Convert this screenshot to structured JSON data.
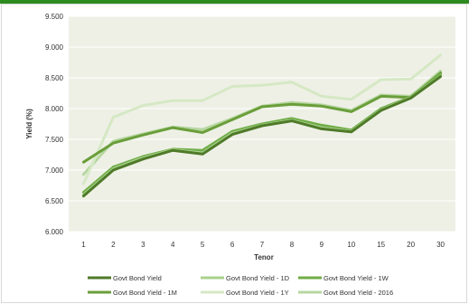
{
  "chart_data": {
    "type": "line",
    "title": "",
    "xlabel": "Tenor",
    "ylabel": "Yield (%)",
    "ylim": [
      6.0,
      9.5
    ],
    "yticks": [
      "6.000",
      "6.500",
      "7.000",
      "7.500",
      "8.000",
      "8.500",
      "9.000",
      "9.500"
    ],
    "categories": [
      "1",
      "2",
      "3",
      "4",
      "5",
      "6",
      "7",
      "8",
      "9",
      "10",
      "15",
      "20",
      "30"
    ],
    "grid": "horizontal",
    "legend_position": "bottom",
    "series": [
      {
        "name": "Govt Bond Yield",
        "color": "#4f7a28",
        "values": [
          6.58,
          7.0,
          7.18,
          7.32,
          7.26,
          7.58,
          7.72,
          7.8,
          7.67,
          7.62,
          7.97,
          8.17,
          8.52
        ]
      },
      {
        "name": "Govt Bond Yield - 1D",
        "color": "#a9d18e",
        "values": [
          6.6,
          7.02,
          7.2,
          7.33,
          7.28,
          7.6,
          7.73,
          7.81,
          7.69,
          7.63,
          7.98,
          8.18,
          8.53
        ]
      },
      {
        "name": "Govt Bond Yield - 1W",
        "color": "#70ad47",
        "values": [
          6.64,
          7.05,
          7.22,
          7.34,
          7.32,
          7.63,
          7.75,
          7.84,
          7.73,
          7.65,
          8.0,
          8.19,
          8.56
        ]
      },
      {
        "name": "Govt Bond Yield - 1M",
        "color": "#6a9e3a",
        "values": [
          7.13,
          7.44,
          7.57,
          7.69,
          7.61,
          7.82,
          8.03,
          8.07,
          8.04,
          7.95,
          8.2,
          8.18,
          8.58
        ]
      },
      {
        "name": "Govt Bond Yield - 1Y",
        "color": "#d5e8c4",
        "values": [
          6.78,
          7.86,
          8.05,
          8.13,
          8.13,
          8.36,
          8.38,
          8.43,
          8.2,
          8.15,
          8.47,
          8.48,
          8.87
        ]
      },
      {
        "name": "Govt Bond Yield - 2016",
        "color": "#b7d7a1",
        "values": [
          6.93,
          7.47,
          7.59,
          7.7,
          7.66,
          7.84,
          8.04,
          8.1,
          8.06,
          7.97,
          8.22,
          8.2,
          8.61
        ]
      }
    ]
  }
}
